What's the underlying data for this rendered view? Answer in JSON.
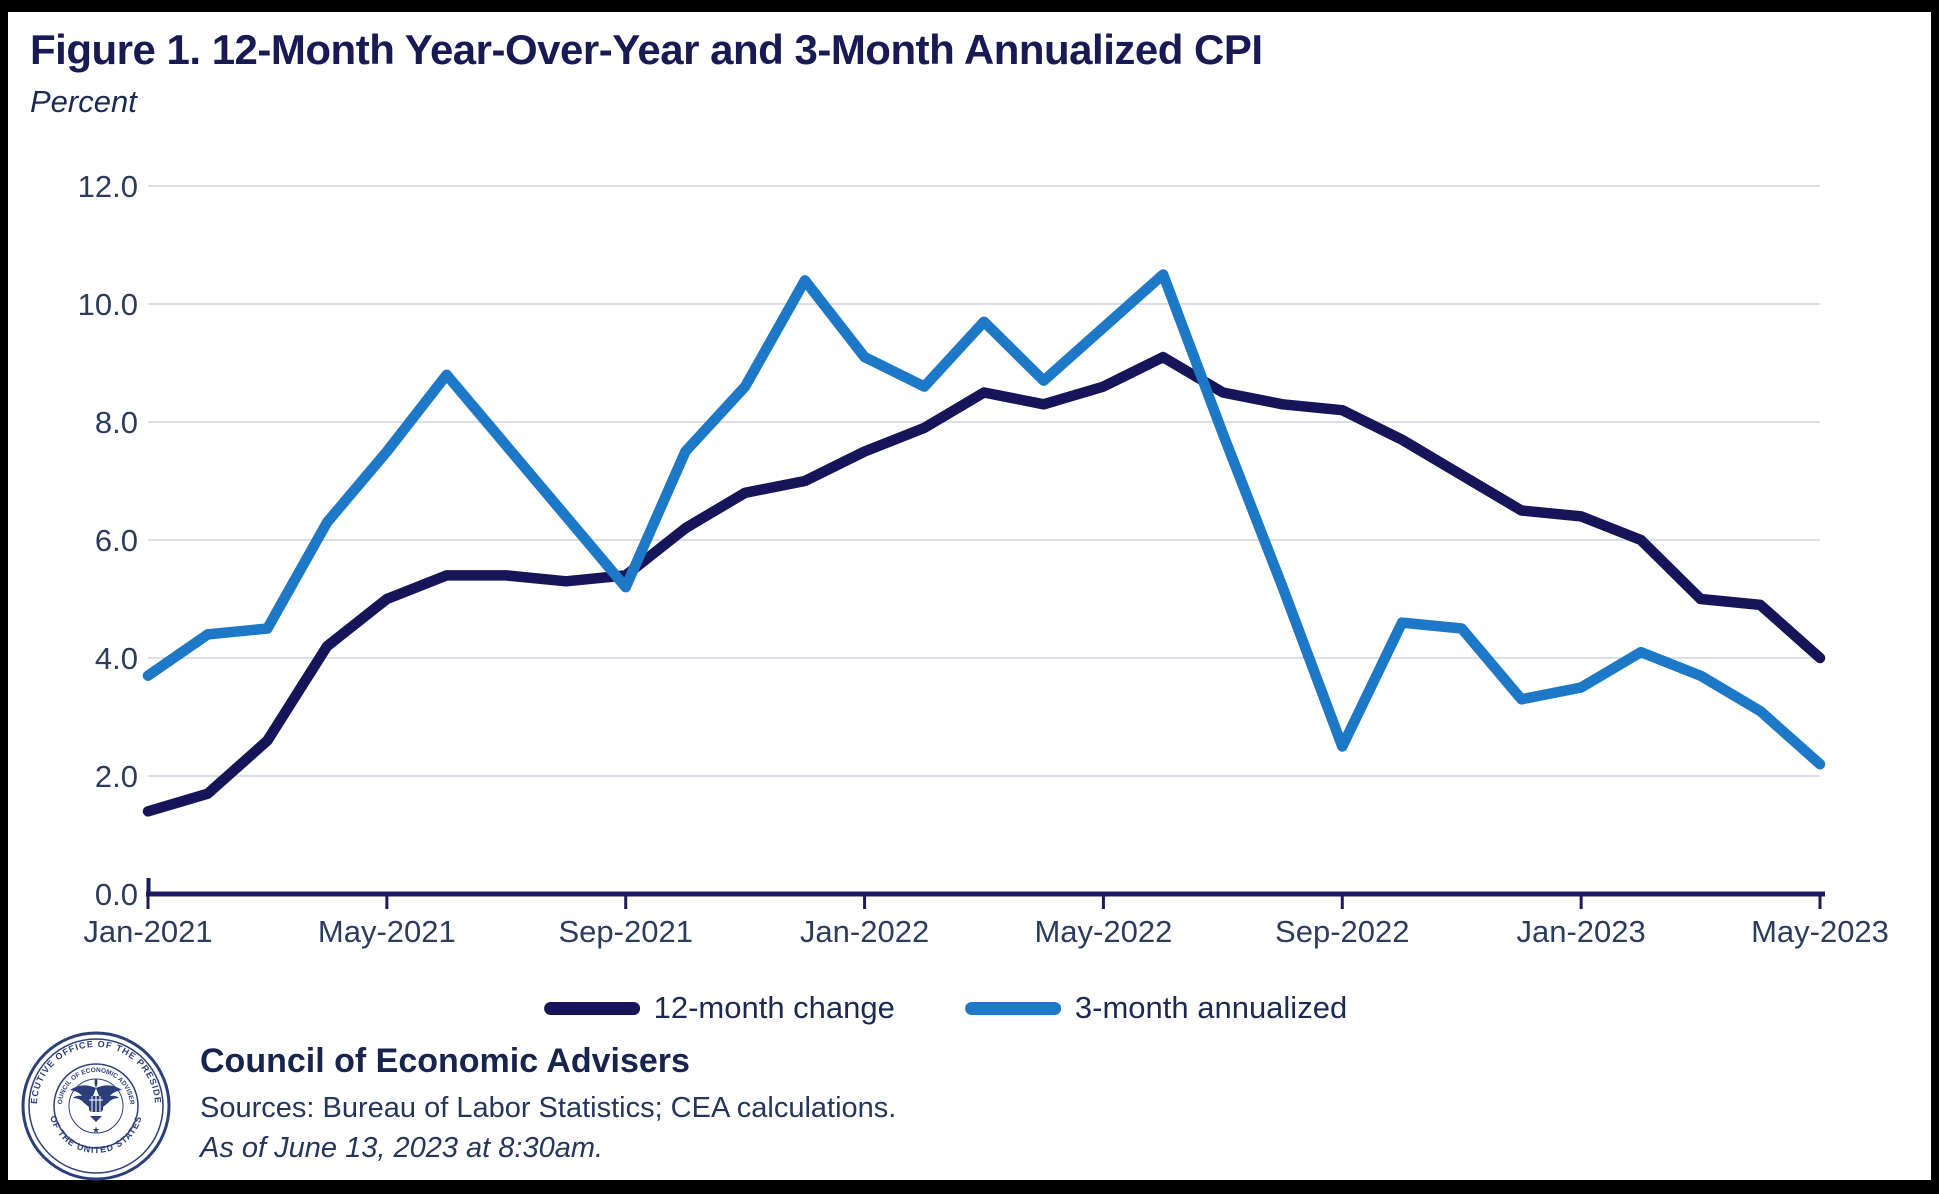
{
  "title": "Figure 1. 12-Month Year-Over-Year and 3-Month Annualized CPI",
  "subtitle": "Percent",
  "chart_data": {
    "type": "line",
    "x": [
      "Jan-2021",
      "Feb-2021",
      "Mar-2021",
      "Apr-2021",
      "May-2021",
      "Jun-2021",
      "Jul-2021",
      "Aug-2021",
      "Sep-2021",
      "Oct-2021",
      "Nov-2021",
      "Dec-2021",
      "Jan-2022",
      "Feb-2022",
      "Mar-2022",
      "Apr-2022",
      "May-2022",
      "Jun-2022",
      "Jul-2022",
      "Aug-2022",
      "Sep-2022",
      "Oct-2022",
      "Nov-2022",
      "Dec-2022",
      "Jan-2023",
      "Feb-2023",
      "Mar-2023",
      "Apr-2023",
      "May-2023"
    ],
    "series": [
      {
        "name": "12-month change",
        "color": "#16155a",
        "values": [
          1.4,
          1.7,
          2.6,
          4.2,
          5.0,
          5.4,
          5.4,
          5.3,
          5.4,
          6.2,
          6.8,
          7.0,
          7.5,
          7.9,
          8.5,
          8.3,
          8.6,
          9.1,
          8.5,
          8.3,
          8.2,
          7.7,
          7.1,
          6.5,
          6.4,
          6.0,
          5.0,
          4.9,
          4.0
        ]
      },
      {
        "name": "3-month annualized",
        "color": "#1e78c8",
        "values": [
          3.7,
          4.4,
          4.5,
          6.3,
          7.5,
          8.8,
          7.6,
          6.4,
          5.2,
          7.5,
          8.6,
          10.4,
          9.1,
          8.6,
          9.7,
          8.7,
          9.6,
          10.5,
          7.8,
          5.2,
          2.5,
          4.6,
          4.5,
          3.3,
          3.5,
          4.1,
          3.7,
          3.1,
          2.2
        ]
      }
    ],
    "title": "Figure 1. 12-Month Year-Over-Year and 3-Month Annualized CPI",
    "ylabel": "Percent",
    "xlabel": "",
    "ylim": [
      0,
      12
    ],
    "ytick_labels": [
      "0.0",
      "2.0",
      "4.0",
      "6.0",
      "8.0",
      "10.0",
      "12.0"
    ],
    "xtick_labels": [
      "Jan-2021",
      "May-2021",
      "Sep-2021",
      "Jan-2022",
      "May-2022",
      "Sep-2022",
      "Jan-2023",
      "May-2023"
    ],
    "xtick_interval": 4,
    "grid": "horizontal",
    "legend_position": "bottom"
  },
  "legend": {
    "items": [
      {
        "label": "12-month change",
        "color": "#16155a"
      },
      {
        "label": "3-month annualized",
        "color": "#1e78c8"
      }
    ]
  },
  "footer": {
    "org": "Council of Economic Advisers",
    "sources": "Sources: Bureau of Labor Statistics; CEA calculations.",
    "as_of": "As of June 13, 2023 at 8:30am.",
    "seal": {
      "outer_top": "EXECUTIVE OFFICE OF THE PRESIDENT",
      "outer_bottom": "OF THE UNITED STATES",
      "inner": "COUNCIL OF ECONOMIC ADVISERS"
    }
  },
  "colors": {
    "navy_line": "#16155a",
    "blue_line": "#1e78c8",
    "axis": "#1b1b5e",
    "gridline": "#d9dee9",
    "tick_label": "#2c3c5e",
    "title_text": "#181a54",
    "background": "#ffffff",
    "frame": "#000000"
  }
}
